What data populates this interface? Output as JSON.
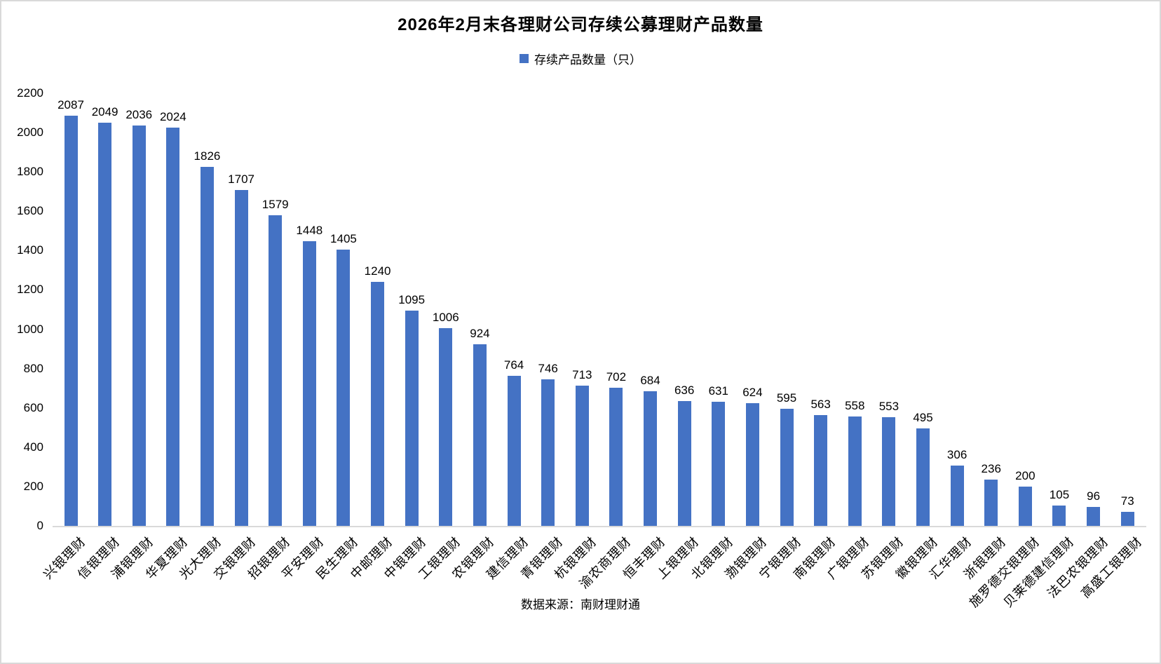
{
  "chart": {
    "title": "2026年2月末各理财公司存续公募理财产品数量",
    "legend_label": "存续产品数量（只）",
    "source": "数据来源：南财理财通"
  },
  "colors": {
    "bar": "#4472C4",
    "axis_line": "#D9D9D9",
    "frame_border": "#D9D9D9",
    "text": "#000000"
  },
  "chart_data": {
    "type": "bar",
    "title": "2026年2月末各理财公司存续公募理财产品数量",
    "legend": [
      "存续产品数量（只）"
    ],
    "legend_position": "top-center",
    "grid": false,
    "xlabel": "",
    "ylabel": "",
    "ylim": [
      0,
      2200
    ],
    "yticks": [
      0,
      200,
      400,
      600,
      800,
      1000,
      1200,
      1400,
      1600,
      1800,
      2000,
      2200
    ],
    "bar_color": "#4472C4",
    "categories": [
      "兴银理财",
      "信银理财",
      "浦银理财",
      "华夏理财",
      "光大理财",
      "交银理财",
      "招银理财",
      "平安理财",
      "民生理财",
      "中邮理财",
      "中银理财",
      "工银理财",
      "农银理财",
      "建信理财",
      "青银理财",
      "杭银理财",
      "渝农商理财",
      "恒丰理财",
      "上银理财",
      "北银理财",
      "渤银理财",
      "宁银理财",
      "南银理财",
      "广银理财",
      "苏银理财",
      "徽银理财",
      "汇华理财",
      "浙银理财",
      "施罗德交银理财",
      "贝莱德建信理财",
      "法巴农银理财",
      "高盛工银理财"
    ],
    "values": [
      2087,
      2049,
      2036,
      2024,
      1826,
      1707,
      1579,
      1448,
      1405,
      1240,
      1095,
      1006,
      924,
      764,
      746,
      713,
      702,
      684,
      636,
      631,
      624,
      595,
      563,
      558,
      553,
      495,
      306,
      236,
      200,
      105,
      96,
      73
    ],
    "source": "数据来源：南财理财通"
  }
}
